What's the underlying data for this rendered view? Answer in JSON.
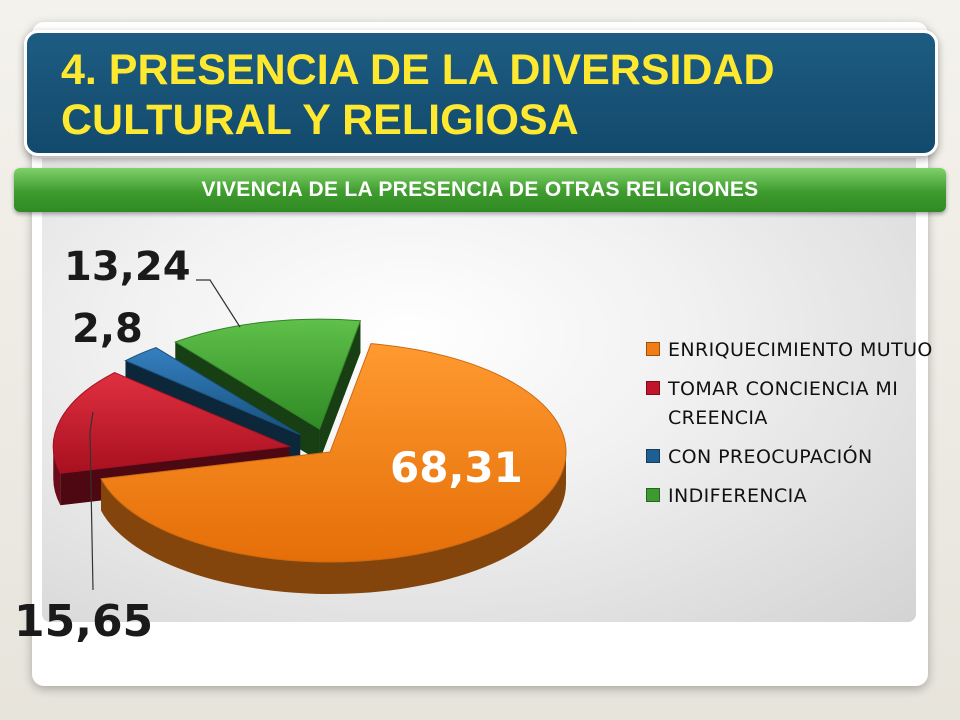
{
  "title": "4. PRESENCIA DE LA DIVERSIDAD\nCULTURAL Y RELIGIOSA",
  "subtitle": "VIVENCIA DE LA PRESENCIA DE OTRAS RELIGIONES",
  "colors": {
    "title_text": "#ffe830",
    "title_bg": "#1a5678",
    "subtitle_bg": "#3e9b2d",
    "enriquecimiento": "#f07d15",
    "tomar_conciencia": "#c0152a",
    "con_preocupacion": "#1d5f92",
    "indiferencia": "#3c9a30"
  },
  "chart_data": {
    "type": "pie",
    "title": "",
    "series": [
      {
        "label": "ENRIQUECIMIENTO MUTUO",
        "value": 68.31,
        "display": "68,31",
        "color": "#f07d15"
      },
      {
        "label": "TOMAR CONCIENCIA MI CREENCIA",
        "value": 15.65,
        "display": "15,65",
        "color": "#c0152a"
      },
      {
        "label": "CON PREOCUPACIÓN",
        "value": 2.8,
        "display": "2,8",
        "color": "#1d5f92"
      },
      {
        "label": "INDIFERENCIA",
        "value": 13.24,
        "display": "13,24",
        "color": "#3c9a30"
      }
    ],
    "legend_position": "right",
    "exploded": true,
    "style": "3d"
  }
}
